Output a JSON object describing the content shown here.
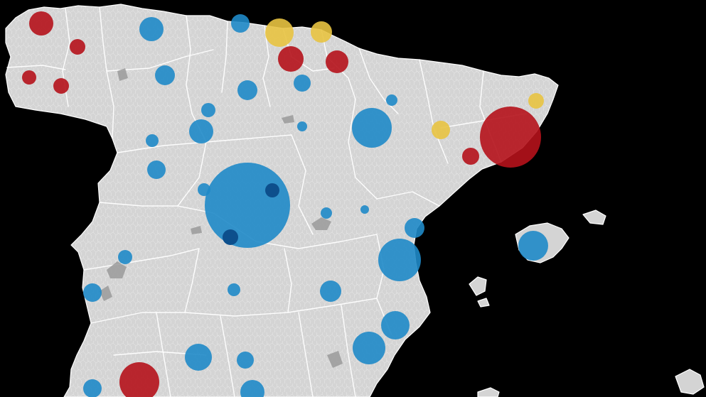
{
  "map": {
    "background": "#000000",
    "land_color": "#d4d4d4",
    "border_color": "#ffffff",
    "palette": {
      "blue": "#1f8ac8",
      "red": "#b5121b",
      "yellow": "#e8c341"
    },
    "bubble_opacity": 0.9,
    "bubbles": [
      {
        "color": "red",
        "size": 17
      },
      {
        "color": "red",
        "size": 11
      },
      {
        "color": "red",
        "size": 10
      },
      {
        "color": "red",
        "size": 11
      },
      {
        "color": "blue",
        "size": 17
      },
      {
        "color": "blue",
        "size": 14
      },
      {
        "color": "yellow",
        "size": 20
      },
      {
        "color": "yellow",
        "size": 15
      },
      {
        "color": "red",
        "size": 18
      },
      {
        "color": "red",
        "size": 16
      },
      {
        "color": "blue",
        "size": 12
      },
      {
        "color": "blue",
        "size": 13
      },
      {
        "color": "blue",
        "size": 14
      },
      {
        "color": "blue",
        "size": 10
      },
      {
        "color": "blue",
        "size": 17
      },
      {
        "color": "blue",
        "size": 9
      },
      {
        "color": "blue",
        "size": 13
      },
      {
        "color": "blue",
        "size": 60
      },
      {
        "color": "blue",
        "size": 9
      },
      {
        "color": "blue",
        "size": 7
      },
      {
        "color": "blue",
        "size": 8
      },
      {
        "color": "blue",
        "size": 28
      },
      {
        "color": "blue",
        "size": 8
      },
      {
        "color": "blue",
        "size": 6
      },
      {
        "color": "yellow",
        "size": 13
      },
      {
        "color": "yellow",
        "size": 11
      },
      {
        "color": "red",
        "size": 43
      },
      {
        "color": "red",
        "size": 12
      },
      {
        "color": "blue",
        "size": 14
      },
      {
        "color": "blue",
        "size": 30
      },
      {
        "color": "blue",
        "size": 21
      },
      {
        "color": "blue",
        "size": 10
      },
      {
        "color": "blue",
        "size": 13
      },
      {
        "color": "blue",
        "size": 9
      },
      {
        "color": "blue",
        "size": 15
      },
      {
        "color": "blue",
        "size": 20
      },
      {
        "color": "blue",
        "size": 23
      },
      {
        "color": "blue",
        "size": 19
      },
      {
        "color": "blue",
        "size": 12
      },
      {
        "color": "red",
        "size": 28
      },
      {
        "color": "blue",
        "size": 13
      },
      {
        "color": "blue",
        "size": 17
      },
      {
        "color": "blue",
        "size": 11
      },
      {
        "color": "blue",
        "size": 10
      }
    ]
  }
}
